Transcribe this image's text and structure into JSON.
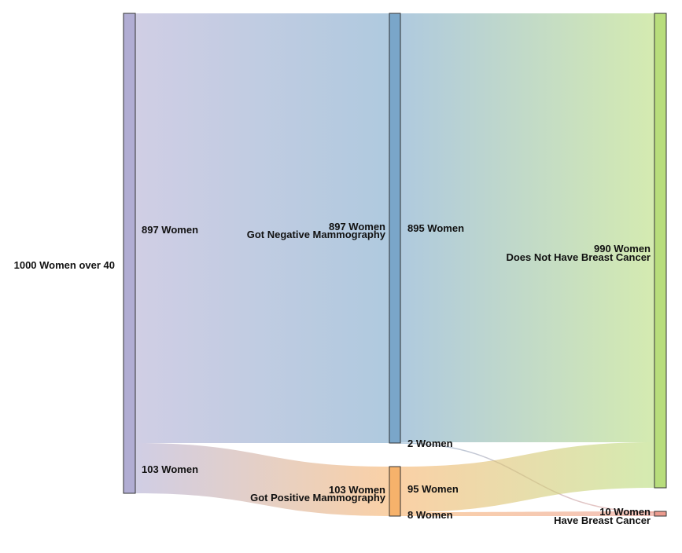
{
  "diagram": {
    "type": "sankey",
    "colors": {
      "source": "#b1add3",
      "negative": "#7aa6c9",
      "positive": "#f6b26b",
      "no_cancer": "#b8dd7c",
      "cancer": "#ec9b8e",
      "stroke": "#333333"
    },
    "nodes": [
      {
        "id": "all",
        "label": "1000 Women over 40",
        "value": 1000
      },
      {
        "id": "neg",
        "label": "Got Negative Mammography",
        "value_label": "897 Women",
        "value": 897
      },
      {
        "id": "pos",
        "label": "Got Positive Mammography",
        "value_label": "103 Women",
        "value": 103
      },
      {
        "id": "nobc",
        "label": "Does Not Have Breast Cancer",
        "value_label": "990 Women",
        "value": 990
      },
      {
        "id": "bc",
        "label": "Have Breast Cancer",
        "value_label": "10 Women",
        "value": 10
      }
    ],
    "links": [
      {
        "source": "all",
        "target": "neg",
        "value": 897,
        "label": "897 Women"
      },
      {
        "source": "all",
        "target": "pos",
        "value": 103,
        "label": "103 Women"
      },
      {
        "source": "neg",
        "target": "nobc",
        "value": 895,
        "label": "895 Women"
      },
      {
        "source": "neg",
        "target": "bc",
        "value": 2,
        "label": "2 Women"
      },
      {
        "source": "pos",
        "target": "nobc",
        "value": 95,
        "label": "95 Women"
      },
      {
        "source": "pos",
        "target": "bc",
        "value": 8,
        "label": "8 Women"
      }
    ]
  }
}
